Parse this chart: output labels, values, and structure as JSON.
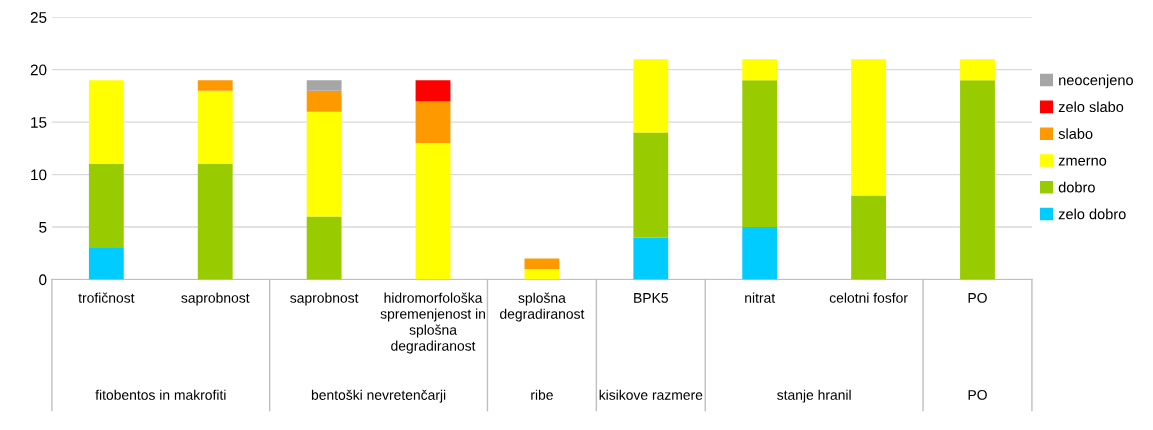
{
  "chart_data": {
    "type": "bar",
    "stacked": true,
    "categories": [
      "trofičnost",
      "saprobnost",
      "saprobnost",
      "hidromorfološka\nspremenjenost in\nsplošna\ndegradiranost",
      "splošna\ndegradiranost",
      "BPK5",
      "nitrat",
      "celotni fosfor",
      "PO"
    ],
    "series": [
      {
        "name": "zelo dobro",
        "color": "#00ccff",
        "values": [
          3,
          0,
          0,
          0,
          0,
          4,
          5,
          0,
          0
        ]
      },
      {
        "name": "dobro",
        "color": "#99cc00",
        "values": [
          8,
          11,
          6,
          0,
          0,
          10,
          14,
          8,
          19
        ]
      },
      {
        "name": "zmerno",
        "color": "#ffff00",
        "values": [
          8,
          7,
          10,
          13,
          1,
          7,
          2,
          13,
          2
        ]
      },
      {
        "name": "slabo",
        "color": "#ff9900",
        "values": [
          0,
          1,
          2,
          4,
          1,
          0,
          0,
          0,
          0
        ]
      },
      {
        "name": "zelo slabo",
        "color": "#ff0000",
        "values": [
          0,
          0,
          0,
          2,
          0,
          0,
          0,
          0,
          0
        ]
      },
      {
        "name": "neocenjeno",
        "color": "#a6a6a6",
        "values": [
          0,
          0,
          1,
          0,
          0,
          0,
          0,
          0,
          0
        ]
      }
    ],
    "annotations": [
      "fitobentos in makrofiti",
      "bentoški nevretenčarji",
      "ribe",
      "kisikove razmere",
      "stanje hranil",
      "PO"
    ],
    "ylim": [
      0,
      25
    ],
    "yticks": [
      0,
      5,
      10,
      15,
      20,
      25
    ],
    "grid": "y",
    "legend": "right"
  }
}
